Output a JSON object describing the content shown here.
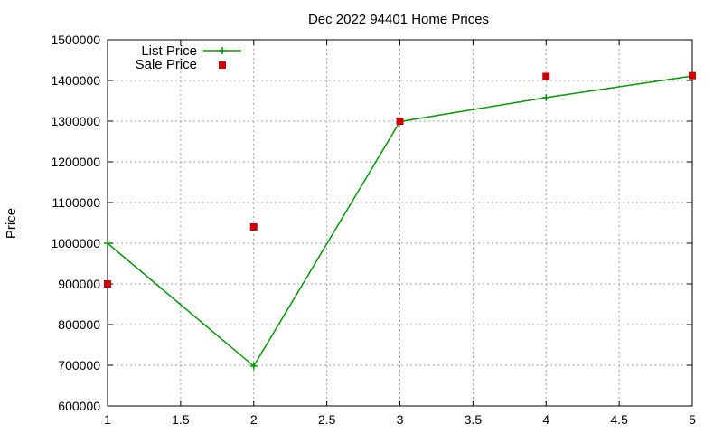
{
  "chart_data": {
    "type": "line",
    "title": "Dec 2022 94401 Home Prices",
    "xlabel": "",
    "ylabel": "Price",
    "xlim": [
      1,
      5
    ],
    "ylim": [
      600000,
      1500000
    ],
    "grid": true,
    "legend_position": "top-left",
    "x_ticks": [
      "1",
      "1.5",
      "2",
      "2.5",
      "3",
      "3.5",
      "4",
      "4.5",
      "5"
    ],
    "x_tick_values": [
      1,
      1.5,
      2,
      2.5,
      3,
      3.5,
      4,
      4.5,
      5
    ],
    "y_ticks": [
      "600000",
      "700000",
      "800000",
      "900000",
      "1000000",
      "1100000",
      "1200000",
      "1300000",
      "1400000",
      "1500000"
    ],
    "y_tick_values": [
      600000,
      700000,
      800000,
      900000,
      1000000,
      1100000,
      1200000,
      1300000,
      1400000,
      1500000
    ],
    "series": [
      {
        "name": "List Price",
        "style": "line-with-plus-markers",
        "color": "#009900",
        "x": [
          1,
          2,
          3,
          4,
          5
        ],
        "y": [
          1000000,
          698000,
          1299000,
          1358000,
          1411000
        ]
      },
      {
        "name": "Sale Price",
        "style": "square-points",
        "color": "#cc0000",
        "x": [
          1,
          2,
          3,
          4,
          5
        ],
        "y": [
          900000,
          1040000,
          1300000,
          1410000,
          1412000
        ]
      }
    ]
  }
}
